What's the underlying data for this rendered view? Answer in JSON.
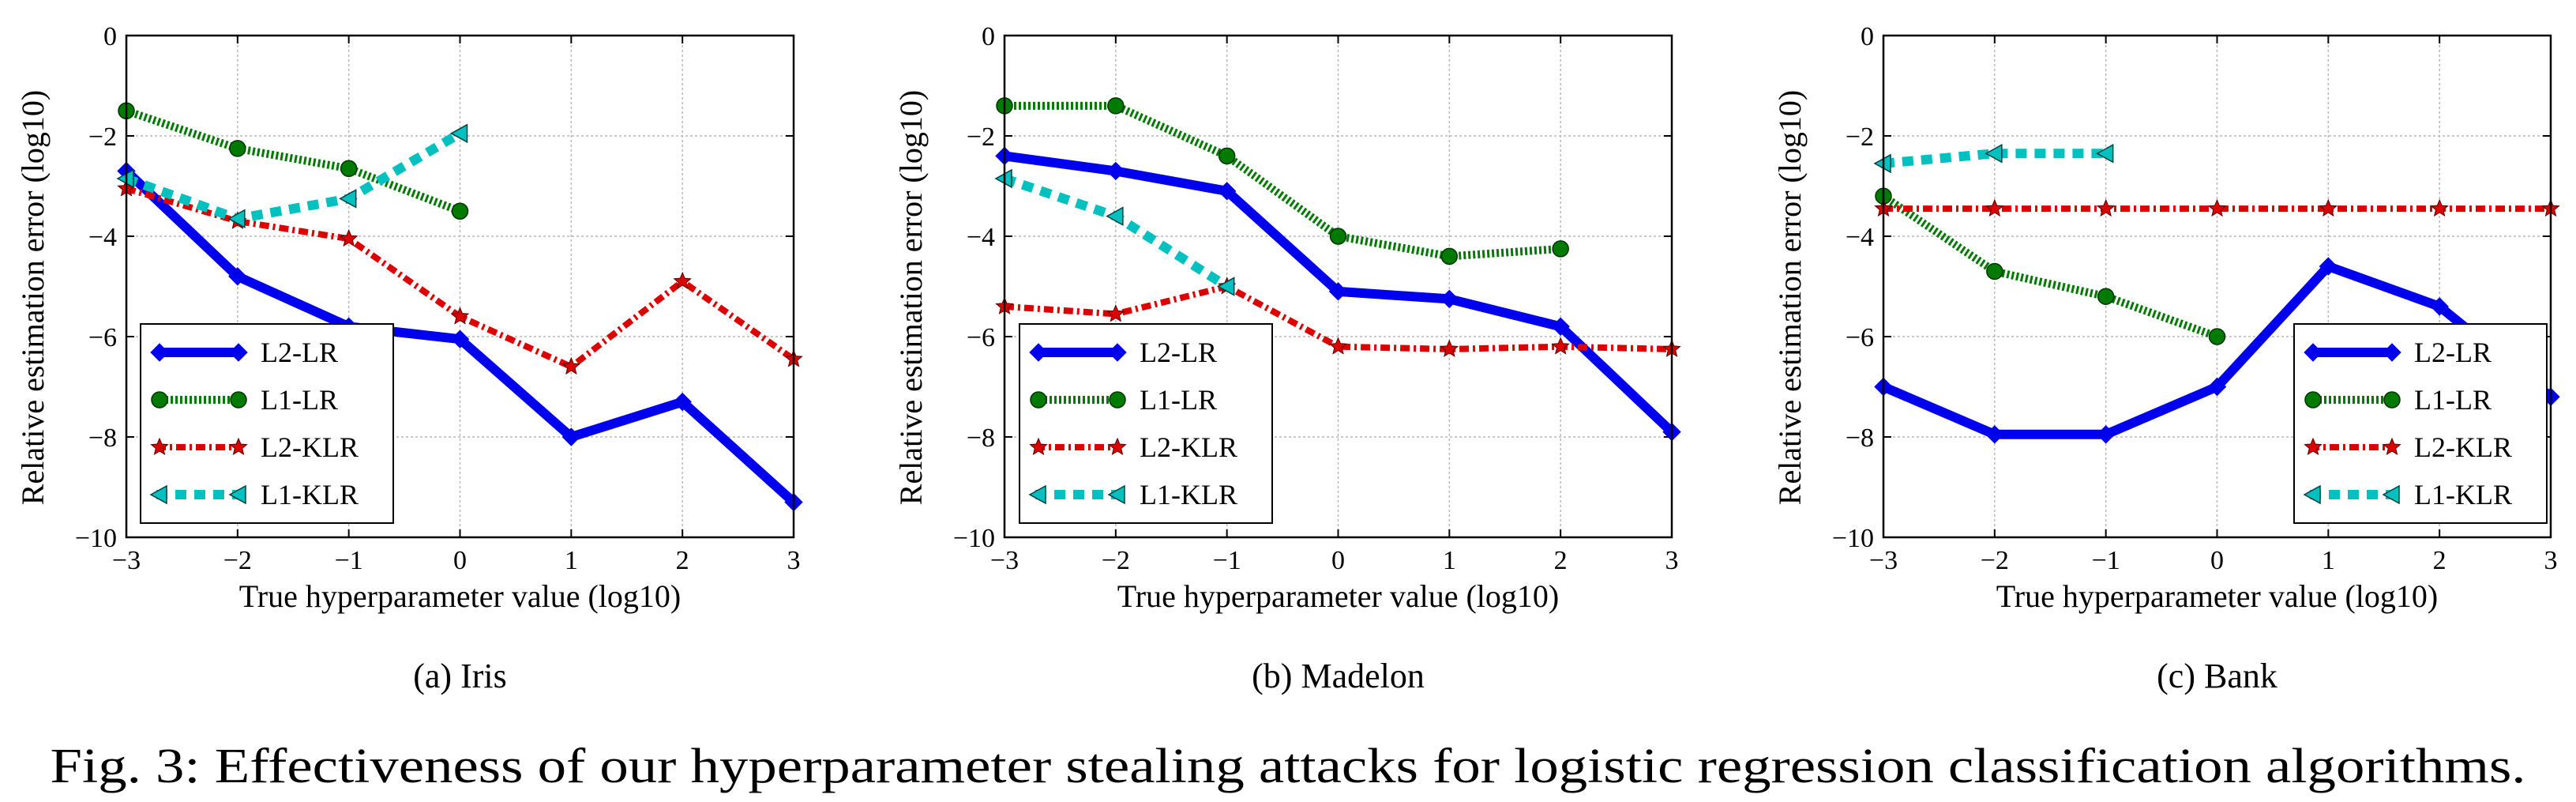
{
  "caption": "Fig. 3: Effectiveness of our hyperparameter stealing attacks for logistic regression classification algorithms.",
  "colors": {
    "L2-LR": "#0000ee",
    "L1-LR": "#007a00",
    "L2-KLR": "#dd0000",
    "L1-KLR": "#00c0c0",
    "grid": "#b8b8b8"
  },
  "chart_data": [
    {
      "type": "line",
      "subcaption": "(a) Iris",
      "xlabel": "True hyperparameter value (log10)",
      "ylabel": "Relative estimation error (log10)",
      "xlim": [
        -3,
        3
      ],
      "ylim": [
        -10,
        0
      ],
      "xticks": [
        "−3",
        "−2",
        "−1",
        "0",
        "1",
        "2",
        "3"
      ],
      "yticks": [
        "0",
        "−2",
        "−4",
        "−6",
        "−8",
        "−10"
      ],
      "grid": true,
      "legend_position": "bottom-left",
      "series": [
        {
          "name": "L2-LR",
          "x": [
            -3,
            -2,
            -1,
            0,
            1,
            2,
            3
          ],
          "y": [
            -2.7,
            -4.8,
            -5.8,
            -6.05,
            -8.0,
            -7.3,
            -9.3
          ]
        },
        {
          "name": "L1-LR",
          "x": [
            -3,
            -2,
            -1,
            0
          ],
          "y": [
            -1.5,
            -2.25,
            -2.65,
            -3.5
          ]
        },
        {
          "name": "L2-KLR",
          "x": [
            -3,
            -2,
            -1,
            0,
            1,
            2,
            3
          ],
          "y": [
            -3.05,
            -3.7,
            -4.05,
            -5.6,
            -6.6,
            -4.9,
            -6.45
          ]
        },
        {
          "name": "L1-KLR",
          "x": [
            -3,
            -2,
            -1,
            0
          ],
          "y": [
            -2.85,
            -3.65,
            -3.25,
            -1.95
          ]
        }
      ]
    },
    {
      "type": "line",
      "subcaption": "(b) Madelon",
      "xlabel": "True hyperparameter value (log10)",
      "ylabel": "Relative estimation error (log10)",
      "xlim": [
        -3,
        3
      ],
      "ylim": [
        -10,
        0
      ],
      "xticks": [
        "−3",
        "−2",
        "−1",
        "0",
        "1",
        "2",
        "3"
      ],
      "yticks": [
        "0",
        "−2",
        "−4",
        "−6",
        "−8",
        "−10"
      ],
      "grid": true,
      "legend_position": "bottom-left",
      "series": [
        {
          "name": "L2-LR",
          "x": [
            -3,
            -2,
            -1,
            0,
            1,
            2,
            3
          ],
          "y": [
            -2.4,
            -2.7,
            -3.1,
            -5.1,
            -5.25,
            -5.8,
            -7.9
          ]
        },
        {
          "name": "L1-LR",
          "x": [
            -3,
            -2,
            -1,
            0,
            1,
            2
          ],
          "y": [
            -1.4,
            -1.4,
            -2.4,
            -4.0,
            -4.4,
            -4.25
          ]
        },
        {
          "name": "L2-KLR",
          "x": [
            -3,
            -2,
            -1,
            0,
            1,
            2,
            3
          ],
          "y": [
            -5.4,
            -5.55,
            -5.0,
            -6.2,
            -6.25,
            -6.2,
            -6.25
          ]
        },
        {
          "name": "L1-KLR",
          "x": [
            -3,
            -2,
            -1
          ],
          "y": [
            -2.85,
            -3.6,
            -5.0
          ]
        }
      ]
    },
    {
      "type": "line",
      "subcaption": "(c) Bank",
      "xlabel": "True hyperparameter value (log10)",
      "ylabel": "Relative estimation error (log10)",
      "xlim": [
        -3,
        3
      ],
      "ylim": [
        -10,
        0
      ],
      "xticks": [
        "−3",
        "−2",
        "−1",
        "0",
        "1",
        "2",
        "3"
      ],
      "yticks": [
        "0",
        "−2",
        "−4",
        "−6",
        "−8",
        "−10"
      ],
      "grid": true,
      "legend_position": "bottom-right",
      "series": [
        {
          "name": "L2-LR",
          "x": [
            -3,
            -2,
            -1,
            0,
            1,
            2,
            3
          ],
          "y": [
            -7.0,
            -7.95,
            -7.95,
            -7.0,
            -4.6,
            -5.4,
            -7.2
          ]
        },
        {
          "name": "L1-LR",
          "x": [
            -3,
            -2,
            -1,
            0
          ],
          "y": [
            -3.2,
            -4.7,
            -5.2,
            -6.0
          ]
        },
        {
          "name": "L2-KLR",
          "x": [
            -3,
            -2,
            -1,
            0,
            1,
            2,
            3
          ],
          "y": [
            -3.45,
            -3.45,
            -3.45,
            -3.45,
            -3.45,
            -3.45,
            -3.45
          ]
        },
        {
          "name": "L1-KLR",
          "x": [
            -3,
            -2,
            -1
          ],
          "y": [
            -2.55,
            -2.35,
            -2.35
          ]
        }
      ]
    }
  ]
}
